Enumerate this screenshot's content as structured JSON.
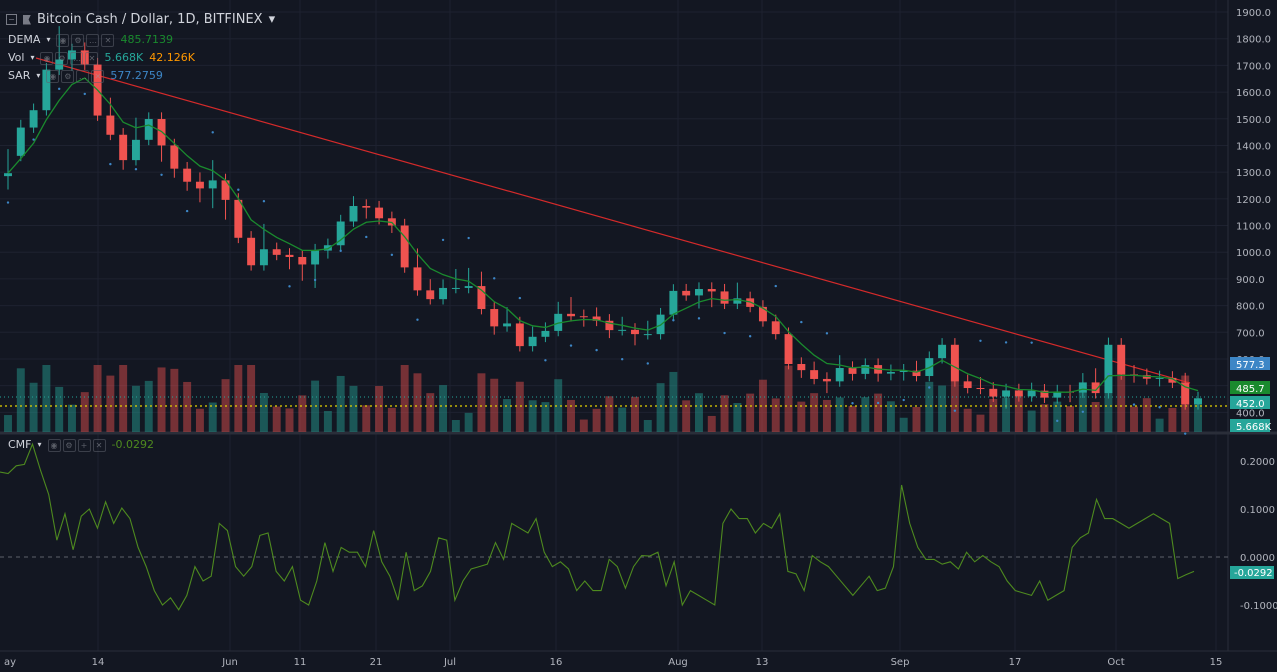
{
  "header": {
    "symbol_title": "Bitcoin Cash / Dollar, 1D, BITFINEX",
    "caret": "▾"
  },
  "indicators": {
    "dema": {
      "name": "DEMA",
      "value": "485.7139"
    },
    "vol": {
      "name": "Vol",
      "value": "5.668K",
      "value2": "42.126K"
    },
    "sar": {
      "name": "SAR",
      "value": "577.2759"
    },
    "cmf": {
      "name": "CMF",
      "value": "-0.0292"
    }
  },
  "colors": {
    "background": "#131722",
    "up": "#26a69a",
    "down": "#ef5350",
    "dema_line": "#1a8a2e",
    "sar_dots": "#3d86c6",
    "trendline": "#d42a2a",
    "support_line": "#e6d400",
    "cmf_line": "#4e8a1f",
    "axis_text": "#b2b5be"
  },
  "price_axis": {
    "ticks": [
      "1900.0",
      "1800.0",
      "1700.0",
      "1600.0",
      "1500.0",
      "1400.0",
      "1300.0",
      "1200.0",
      "1100.0",
      "1000.0",
      "900.0",
      "800.0",
      "700.0",
      "600.0",
      "500.0",
      "400.0"
    ],
    "tags": [
      {
        "text": "577.3",
        "color": "#3d86c6"
      },
      {
        "text": "485.7",
        "color": "#1a8a2e"
      },
      {
        "text": "452.0",
        "color": "#26a69a"
      },
      {
        "text": "5.668K",
        "color": "#26a69a"
      }
    ]
  },
  "cmf_axis": {
    "ticks": [
      "0.2000",
      "0.1000",
      "0.0000",
      "-0.1000"
    ],
    "tag": "-0.0292"
  },
  "time_axis": {
    "labels": [
      "ay",
      "14",
      "Jun",
      "11",
      "21",
      "Jul",
      "16",
      "Aug",
      "13",
      "Sep",
      "17",
      "Oct",
      "15"
    ]
  },
  "chart_data": {
    "type": "candlestick",
    "title": "Bitcoin Cash / Dollar, 1D, BITFINEX",
    "price_range": [
      400,
      1900
    ],
    "cmf_range": [
      -0.15,
      0.24
    ],
    "last_close": 452.0,
    "candles": [
      [
        1285,
        1361,
        1255,
        1296
      ],
      [
        1361,
        1471,
        1385,
        1467
      ],
      [
        1467,
        1508,
        1521,
        1532
      ],
      [
        1532,
        1629,
        1670,
        1684
      ],
      [
        1684,
        1719,
        1822,
        1722
      ],
      [
        1722,
        1701,
        1700,
        1756
      ],
      [
        1756,
        1704,
        1761,
        1703
      ],
      [
        1703,
        1634,
        1544,
        1512
      ],
      [
        1512,
        1448,
        1554,
        1440
      ],
      [
        1440,
        1329,
        1423,
        1345
      ],
      [
        1345,
        1479,
        1464,
        1421
      ],
      [
        1421,
        1458,
        1467,
        1499
      ],
      [
        1499,
        1384,
        1359,
        1400
      ],
      [
        1400,
        1302,
        1299,
        1313
      ],
      [
        1313,
        1280,
        1250,
        1264
      ],
      [
        1264,
        1207,
        1274,
        1239
      ],
      [
        1239,
        1185,
        1320,
        1269
      ],
      [
        1269,
        1142,
        1237,
        1196
      ],
      [
        1196,
        1165,
        1079,
        1054
      ],
      [
        1054,
        1033,
        1001,
        951
      ],
      [
        951,
        1028,
        1081,
        1011
      ],
      [
        1011,
        993,
        1007,
        990
      ],
      [
        990,
        956,
        977,
        982
      ],
      [
        982,
        913,
        942,
        954
      ],
      [
        954,
        886,
        900,
        1006
      ],
      [
        1006,
        996,
        1001,
        1026
      ],
      [
        1026,
        1064,
        1106,
        1115
      ],
      [
        1115,
        1185,
        1176,
        1173
      ],
      [
        1173,
        1149,
        1146,
        1167
      ],
      [
        1167,
        1142,
        1124,
        1127
      ],
      [
        1127,
        1092,
        1117,
        1100
      ],
      [
        1100,
        1046,
        1008,
        943
      ],
      [
        943,
        989,
        956,
        857
      ],
      [
        857,
        874,
        838,
        824
      ],
      [
        824,
        871,
        873,
        866
      ],
      [
        866,
        912,
        879,
        866
      ],
      [
        866,
        891,
        916,
        873
      ],
      [
        873,
        902,
        885,
        787
      ],
      [
        787,
        711,
        713,
        722
      ],
      [
        722,
        763,
        769,
        733
      ],
      [
        733,
        706,
        672,
        648
      ],
      [
        648,
        696,
        661,
        683
      ],
      [
        683,
        708,
        712,
        705
      ],
      [
        705,
        749,
        789,
        769
      ],
      [
        769,
        807,
        800,
        760
      ],
      [
        760,
        741,
        745,
        759
      ],
      [
        759,
        744,
        768,
        743
      ],
      [
        743,
        716,
        698,
        708
      ],
      [
        708,
        733,
        714,
        709
      ],
      [
        709,
        693,
        671,
        693
      ],
      [
        693,
        702,
        718,
        693
      ],
      [
        693,
        707,
        711,
        766
      ],
      [
        766,
        789,
        834,
        855
      ],
      [
        855,
        856,
        853,
        838
      ],
      [
        838,
        829,
        809,
        862
      ],
      [
        862,
        851,
        814,
        853
      ],
      [
        853,
        856,
        855,
        807
      ],
      [
        807,
        861,
        848,
        827
      ],
      [
        827,
        809,
        804,
        795
      ],
      [
        795,
        782,
        754,
        741
      ],
      [
        741,
        730,
        718,
        693
      ],
      [
        693,
        668,
        614,
        581
      ],
      [
        581,
        557,
        549,
        558
      ],
      [
        558,
        565,
        541,
        525
      ],
      [
        525,
        518,
        492,
        516
      ],
      [
        516,
        561,
        589,
        566
      ],
      [
        566,
        539,
        547,
        544
      ],
      [
        544,
        577,
        577,
        577
      ],
      [
        577,
        535,
        548,
        545
      ],
      [
        545,
        540,
        554,
        551
      ],
      [
        551,
        539,
        540,
        556
      ],
      [
        556,
        555,
        568,
        536
      ],
      [
        536,
        578,
        585,
        603
      ],
      [
        603,
        641,
        651,
        653
      ],
      [
        653,
        607,
        549,
        516
      ],
      [
        516,
        502,
        499,
        491
      ],
      [
        491,
        507,
        493,
        488
      ],
      [
        488,
        480,
        459,
        459
      ],
      [
        459,
        434,
        459,
        482
      ],
      [
        482,
        474,
        474,
        460
      ],
      [
        460,
        486,
        465,
        481
      ],
      [
        481,
        469,
        462,
        455
      ],
      [
        455,
        455,
        453,
        478
      ],
      [
        478,
        469,
        458,
        474
      ],
      [
        474,
        522,
        519,
        512
      ],
      [
        512,
        540,
        484,
        472
      ],
      [
        472,
        580,
        655,
        653
      ],
      [
        653,
        561,
        566,
        542
      ],
      [
        542,
        552,
        531,
        539
      ],
      [
        539,
        524,
        538,
        526
      ],
      [
        526,
        531,
        517,
        529
      ],
      [
        529,
        520,
        524,
        511
      ],
      [
        511,
        523,
        522,
        430
      ],
      [
        430,
        450,
        452,
        452
      ]
    ],
    "cmf": [
      0.177,
      0.174,
      0.19,
      0.193,
      0.235,
      0.18,
      0.13,
      0.035,
      0.09,
      0.015,
      0.085,
      0.1,
      0.06,
      0.115,
      0.07,
      0.102,
      0.08,
      0.02,
      -0.02,
      -0.07,
      -0.1,
      -0.085,
      -0.11,
      -0.08,
      -0.02,
      -0.05,
      -0.04,
      0.07,
      0.055,
      -0.02,
      -0.04,
      -0.02,
      0.045,
      0.05,
      -0.03,
      -0.05,
      -0.02,
      -0.09,
      -0.1,
      -0.05,
      0.03,
      -0.03,
      0.02,
      0.01,
      0.01,
      -0.02,
      0.055,
      -0.01,
      -0.04,
      -0.09,
      0.01,
      -0.07,
      -0.06,
      -0.03,
      0.04,
      0.035,
      -0.09,
      -0.05,
      -0.025,
      -0.02,
      -0.015,
      0.03,
      -0.005,
      0.07,
      0.06,
      0.05,
      0.08,
      0.01,
      -0.02,
      -0.01,
      -0.025,
      -0.07,
      -0.05,
      -0.07,
      -0.07,
      -0.005,
      -0.02,
      -0.065,
      -0.02,
      0.003,
      0.002,
      0.01,
      -0.06,
      -0.01,
      -0.1,
      -0.07,
      -0.08,
      -0.09,
      -0.1,
      0.07,
      0.1,
      0.08,
      0.08,
      0.05,
      0.07,
      0.06,
      0.09,
      -0.03,
      -0.035,
      -0.07,
      0.003,
      -0.01,
      -0.02,
      -0.04,
      -0.06,
      -0.08,
      -0.06,
      -0.04,
      -0.07,
      -0.065,
      -0.02,
      0.15,
      0.07,
      0.02,
      -0.005,
      -0.005,
      -0.015,
      -0.01,
      -0.025,
      0.01,
      -0.01,
      0.003,
      -0.01,
      -0.02,
      -0.05,
      -0.07,
      -0.075,
      -0.08,
      -0.05,
      -0.09,
      -0.08,
      -0.07,
      0.02,
      0.04,
      0.05,
      0.12,
      0.08,
      0.08,
      0.07,
      0.06,
      0.07,
      0.08,
      0.09,
      0.08,
      0.07,
      -0.045,
      -0.037,
      -0.03
    ]
  }
}
